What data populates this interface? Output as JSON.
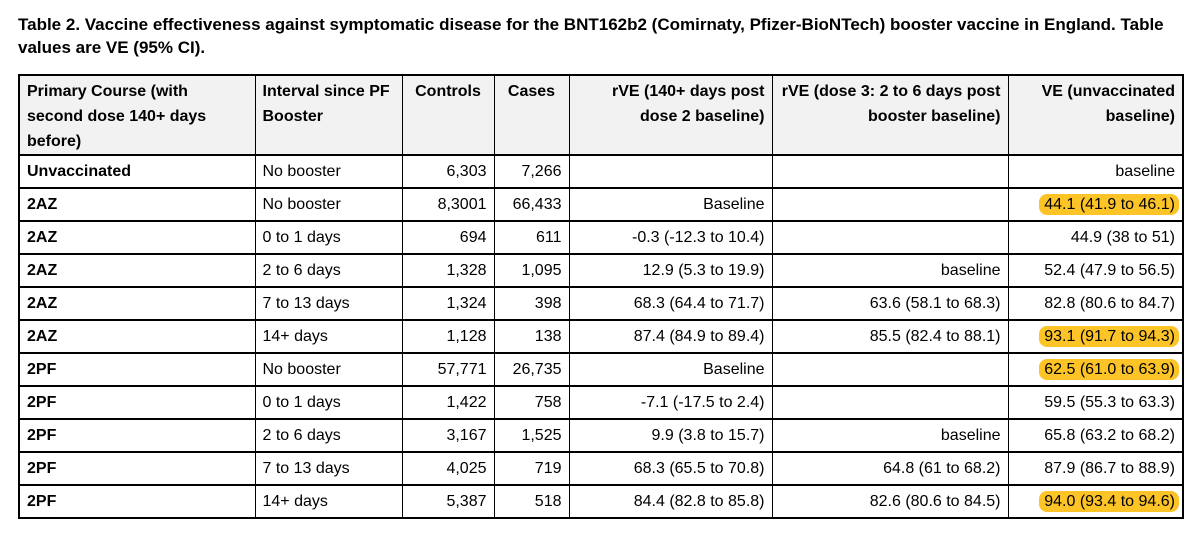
{
  "title": "Table 2. Vaccine effectiveness against symptomatic disease for the BNT162b2 (Comirnaty, Pfizer-BioNTech) booster vaccine in England. Table values are VE (95% CI).",
  "colors": {
    "highlight": "#fdc428",
    "header_bg": "#f2f2f2",
    "border": "#000000",
    "page_bg": "#ffffff"
  },
  "table": {
    "columns": [
      {
        "key": "primary_course",
        "label": "Primary Course (with second dose 140+ days before)",
        "align": "left"
      },
      {
        "key": "interval",
        "label": "Interval since PF Booster",
        "align": "left"
      },
      {
        "key": "controls",
        "label": "Controls",
        "align": "center"
      },
      {
        "key": "cases",
        "label": "Cases",
        "align": "center"
      },
      {
        "key": "rve_dose2",
        "label": "rVE (140+ days post dose 2 baseline)",
        "align": "right"
      },
      {
        "key": "rve_booster",
        "label": "rVE (dose 3: 2 to 6 days post booster baseline)",
        "align": "right"
      },
      {
        "key": "ve",
        "label": "VE (unvaccinated baseline)",
        "align": "right"
      }
    ],
    "rows": [
      {
        "primary_course": "Unvaccinated",
        "interval": "No booster",
        "controls": "6,303",
        "cases": "7,266",
        "rve_dose2": "",
        "rve_booster": "",
        "ve": "baseline",
        "ve_highlight": false
      },
      {
        "primary_course": "2AZ",
        "interval": "No booster",
        "controls": "8,3001",
        "cases": "66,433",
        "rve_dose2": "Baseline",
        "rve_booster": "",
        "ve": "44.1 (41.9 to 46.1)",
        "ve_highlight": true
      },
      {
        "primary_course": "2AZ",
        "interval": "0 to 1 days",
        "controls": "694",
        "cases": "611",
        "rve_dose2": "-0.3 (-12.3 to 10.4)",
        "rve_booster": "",
        "ve": "44.9 (38 to 51)",
        "ve_highlight": false
      },
      {
        "primary_course": "2AZ",
        "interval": "2 to 6 days",
        "controls": "1,328",
        "cases": "1,095",
        "rve_dose2": "12.9 (5.3 to 19.9)",
        "rve_booster": "baseline",
        "ve": "52.4 (47.9 to 56.5)",
        "ve_highlight": false
      },
      {
        "primary_course": "2AZ",
        "interval": "7 to 13 days",
        "controls": "1,324",
        "cases": "398",
        "rve_dose2": "68.3 (64.4 to 71.7)",
        "rve_booster": "63.6 (58.1 to 68.3)",
        "ve": "82.8 (80.6 to 84.7)",
        "ve_highlight": false
      },
      {
        "primary_course": "2AZ",
        "interval": "14+ days",
        "controls": "1,128",
        "cases": "138",
        "rve_dose2": "87.4 (84.9 to 89.4)",
        "rve_booster": "85.5 (82.4 to 88.1)",
        "ve": "93.1 (91.7 to 94.3)",
        "ve_highlight": true
      },
      {
        "primary_course": "2PF",
        "interval": "No booster",
        "controls": "57,771",
        "cases": "26,735",
        "rve_dose2": "Baseline",
        "rve_booster": "",
        "ve": "62.5 (61.0 to 63.9)",
        "ve_highlight": true
      },
      {
        "primary_course": "2PF",
        "interval": "0 to 1 days",
        "controls": "1,422",
        "cases": "758",
        "rve_dose2": "-7.1 (-17.5 to 2.4)",
        "rve_booster": "",
        "ve": "59.5 (55.3 to 63.3)",
        "ve_highlight": false
      },
      {
        "primary_course": "2PF",
        "interval": "2 to 6 days",
        "controls": "3,167",
        "cases": "1,525",
        "rve_dose2": "9.9 (3.8 to 15.7)",
        "rve_booster": "baseline",
        "ve": "65.8 (63.2 to 68.2)",
        "ve_highlight": false
      },
      {
        "primary_course": "2PF",
        "interval": "7 to 13 days",
        "controls": "4,025",
        "cases": "719",
        "rve_dose2": "68.3 (65.5 to 70.8)",
        "rve_booster": "64.8 (61 to 68.2)",
        "ve": "87.9 (86.7 to 88.9)",
        "ve_highlight": false
      },
      {
        "primary_course": "2PF",
        "interval": "14+ days",
        "controls": "5,387",
        "cases": "518",
        "rve_dose2": "84.4 (82.8 to 85.8)",
        "rve_booster": "82.6 (80.6 to 84.5)",
        "ve": "94.0 (93.4 to 94.6)",
        "ve_highlight": true
      }
    ]
  }
}
